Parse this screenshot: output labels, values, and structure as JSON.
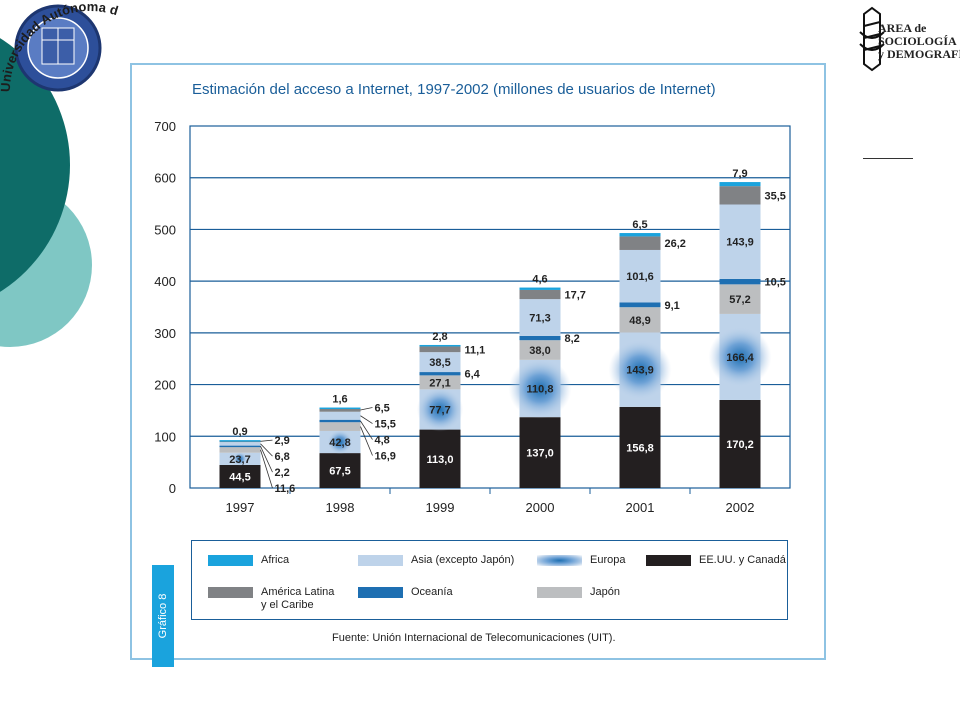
{
  "header": {
    "university_name": "Universidad Autónoma del Estado de Hidalgo",
    "logo_right": {
      "line1": "AREA de",
      "line2": "SOCIOLOGÍA",
      "line3": "y DEMOGRAFÍA"
    }
  },
  "figure": {
    "side_tab": "Gráfico 8",
    "source": "Fuente: Unión Internacional de Telecomunicaciones (UIT).",
    "accent_color": "#1aa3dd",
    "frame_color": "#8ec3e3"
  },
  "chart_data": {
    "type": "bar",
    "stacked": true,
    "title": "Estimación del acceso a Internet, 1997-2002 (millones de usuarios de Internet)",
    "xlabel": "",
    "ylabel": "",
    "ylim": [
      0,
      700
    ],
    "yticks": [
      "0",
      "100",
      "200",
      "300",
      "400",
      "500",
      "600",
      "700"
    ],
    "grid": true,
    "legend_position": "bottom",
    "categories": [
      "1997",
      "1998",
      "1999",
      "2000",
      "2001",
      "2002"
    ],
    "series": [
      {
        "name": "EE.UU. y Canadá",
        "color": "#231f20",
        "label_color": "#ffffff",
        "values": [
          44.5,
          67.5,
          113.0,
          137.0,
          156.8,
          170.2
        ],
        "labels": [
          "44,5",
          "67,5",
          "113,0",
          "137,0",
          "156,8",
          "170,2"
        ]
      },
      {
        "name": "Europa",
        "color": "#bed3ea",
        "glow": true,
        "label_color": "#222222",
        "values": [
          23.7,
          42.8,
          77.7,
          110.8,
          143.9,
          166.4
        ],
        "labels": [
          "23,7",
          "42,8",
          "77,7",
          "110,8",
          "143,9",
          "166,4"
        ]
      },
      {
        "name": "Japón",
        "color": "#bcbec0",
        "label_color": "#222222",
        "values": [
          11.6,
          16.9,
          27.1,
          38.0,
          48.9,
          57.2
        ],
        "labels": [
          "11,6",
          "16,9",
          "27,1",
          "38,0",
          "48,9",
          "57,2"
        ]
      },
      {
        "name": "Oceanía",
        "color": "#1e6fb2",
        "label_color": "#222222",
        "values": [
          2.2,
          4.8,
          6.4,
          8.2,
          9.1,
          10.5
        ],
        "labels": [
          "2,2",
          "4,8",
          "6,4",
          "8,2",
          "9,1",
          "10,5"
        ]
      },
      {
        "name": "Asia (excepto Japón)",
        "color": "#bed3ea",
        "label_color": "#222222",
        "values": [
          6.8,
          15.5,
          38.5,
          71.3,
          101.6,
          143.9
        ],
        "labels": [
          "6,8",
          "15,5",
          "38,5",
          "71,3",
          "101,6",
          "143,9"
        ]
      },
      {
        "name": "América Latina\ny el Caribe",
        "color": "#808285",
        "label_color": "#222222",
        "values": [
          2.9,
          6.5,
          11.1,
          17.7,
          26.2,
          35.5
        ],
        "labels": [
          "2,9",
          "6,5",
          "11,1",
          "17,7",
          "26,2",
          "35,5"
        ]
      },
      {
        "name": "Africa",
        "color": "#1aa3dd",
        "label_color": "#222222",
        "values": [
          0.9,
          1.6,
          2.8,
          4.6,
          6.5,
          7.9
        ],
        "labels": [
          "0,9",
          "1,6",
          "2,8",
          "4,6",
          "6,5",
          "7,9"
        ]
      }
    ],
    "legend": [
      {
        "name": "Africa",
        "color": "#1aa3dd"
      },
      {
        "name": "Asia (excepto Japón)",
        "color": "#bed3ea"
      },
      {
        "name": "Europa",
        "color": "#bed3ea",
        "glow": true
      },
      {
        "name": "EE.UU. y Canadá",
        "color": "#231f20"
      },
      {
        "name": "América Latina\ny el Caribe",
        "color": "#808285"
      },
      {
        "name": "Oceanía",
        "color": "#1e6fb2"
      },
      {
        "name": "Japón",
        "color": "#bcbec0"
      }
    ]
  }
}
